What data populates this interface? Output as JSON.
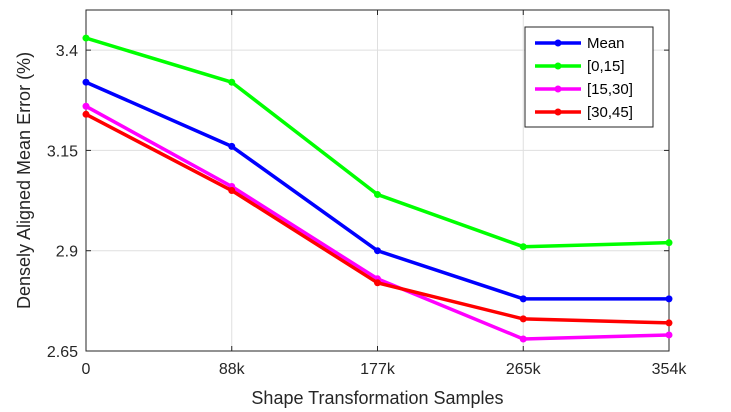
{
  "chart_data": {
    "type": "line",
    "title": "",
    "xlabel": "Shape Transformation Samples",
    "ylabel": "Densely Aligned Mean Error (%)",
    "categories": [
      "0",
      "88k",
      "177k",
      "265k",
      "354k"
    ],
    "ylim": [
      2.65,
      3.5
    ],
    "yticks": [
      2.65,
      2.9,
      3.15,
      3.4
    ],
    "ytick_labels": [
      "2.65",
      "2.9",
      "3.15",
      "3.4"
    ],
    "grid": true,
    "legend_position": "top-right",
    "series": [
      {
        "name": "Mean",
        "color": "#0000ff",
        "values": [
          3.32,
          3.16,
          2.9,
          2.78,
          2.78
        ]
      },
      {
        "name": "[0,15]",
        "color": "#00ff00",
        "values": [
          3.43,
          3.32,
          3.04,
          2.91,
          2.92
        ]
      },
      {
        "name": "[15,30]",
        "color": "#ff00ff",
        "values": [
          3.26,
          3.06,
          2.83,
          2.68,
          2.69
        ]
      },
      {
        "name": "[30,45]",
        "color": "#ff0000",
        "values": [
          3.24,
          3.05,
          2.82,
          2.73,
          2.72
        ]
      }
    ]
  }
}
